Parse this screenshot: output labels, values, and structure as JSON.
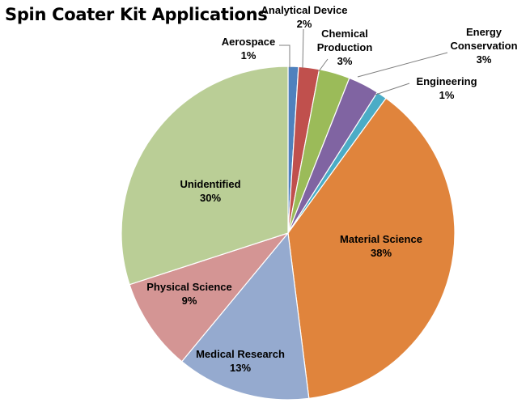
{
  "chart_data": {
    "type": "pie",
    "title": "Spin Coater Kit Applications",
    "slices": [
      {
        "name": "Aerospace",
        "value": 1,
        "percent_label": "1%",
        "color": "#4F81BD"
      },
      {
        "name": "Analytical Device",
        "value": 2,
        "percent_label": "2%",
        "color": "#C0504D"
      },
      {
        "name": "Chemical Production",
        "value": 3,
        "percent_label": "3%",
        "color": "#9BBB59"
      },
      {
        "name": "Energy Conservation",
        "value": 3,
        "percent_label": "3%",
        "color": "#8064A2"
      },
      {
        "name": "Engineering",
        "value": 1,
        "percent_label": "1%",
        "color": "#4BACC6"
      },
      {
        "name": "Material Science",
        "value": 38,
        "percent_label": "38%",
        "color": "#E0843C"
      },
      {
        "name": "Medical Research",
        "value": 13,
        "percent_label": "13%",
        "color": "#95AACF"
      },
      {
        "name": "Physical Science",
        "value": 9,
        "percent_label": "9%",
        "color": "#D49594"
      },
      {
        "name": "Unidentified",
        "value": 30,
        "percent_label": "30%",
        "color": "#BACE96"
      }
    ],
    "start_angle": "12 o'clock",
    "direction": "clockwise",
    "legend": "none",
    "data_labels": "category name and percentage"
  }
}
